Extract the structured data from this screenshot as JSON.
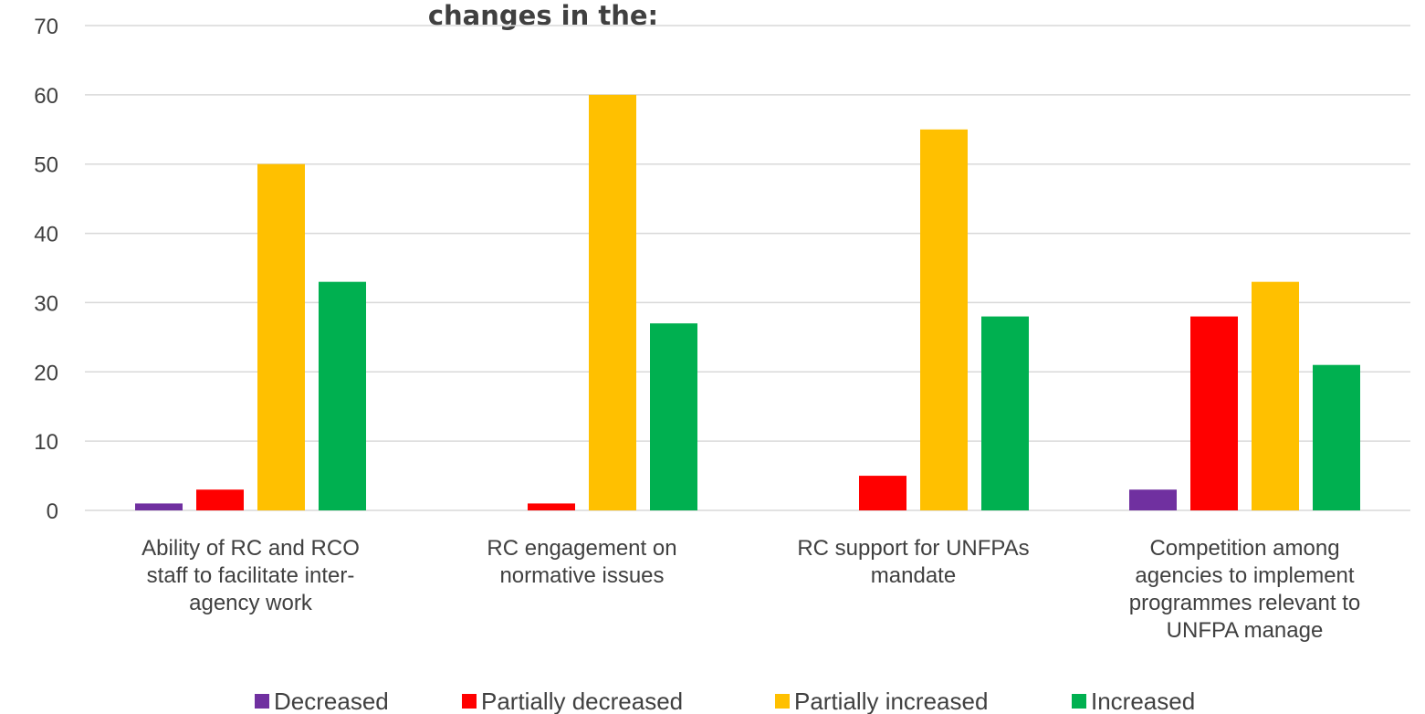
{
  "chart_data": {
    "type": "bar",
    "title": "changes in the:",
    "xlabel": "",
    "ylabel": "",
    "ylim": [
      0,
      70
    ],
    "yticks": [
      0,
      10,
      20,
      30,
      40,
      50,
      60,
      70
    ],
    "grid": true,
    "legend_position": "bottom",
    "categories": [
      [
        "Ability of RC and RCO",
        "staff to facilitate inter-",
        "agency work"
      ],
      [
        "RC engagement on",
        "normative issues"
      ],
      [
        "RC support for UNFPAs",
        "mandate"
      ],
      [
        "Competition among",
        "agencies to implement",
        "programmes relevant to",
        "UNFPA manage"
      ]
    ],
    "series": [
      {
        "name": "Decreased",
        "color": "#7030a0",
        "values": [
          1,
          0,
          0,
          3
        ]
      },
      {
        "name": "Partially decreased",
        "color": "#ff0000",
        "values": [
          3,
          1,
          5,
          28
        ]
      },
      {
        "name": "Partially increased",
        "color": "#ffc000",
        "values": [
          50,
          60,
          55,
          33
        ]
      },
      {
        "name": "Increased",
        "color": "#00b050",
        "values": [
          33,
          27,
          28,
          21
        ]
      }
    ]
  }
}
